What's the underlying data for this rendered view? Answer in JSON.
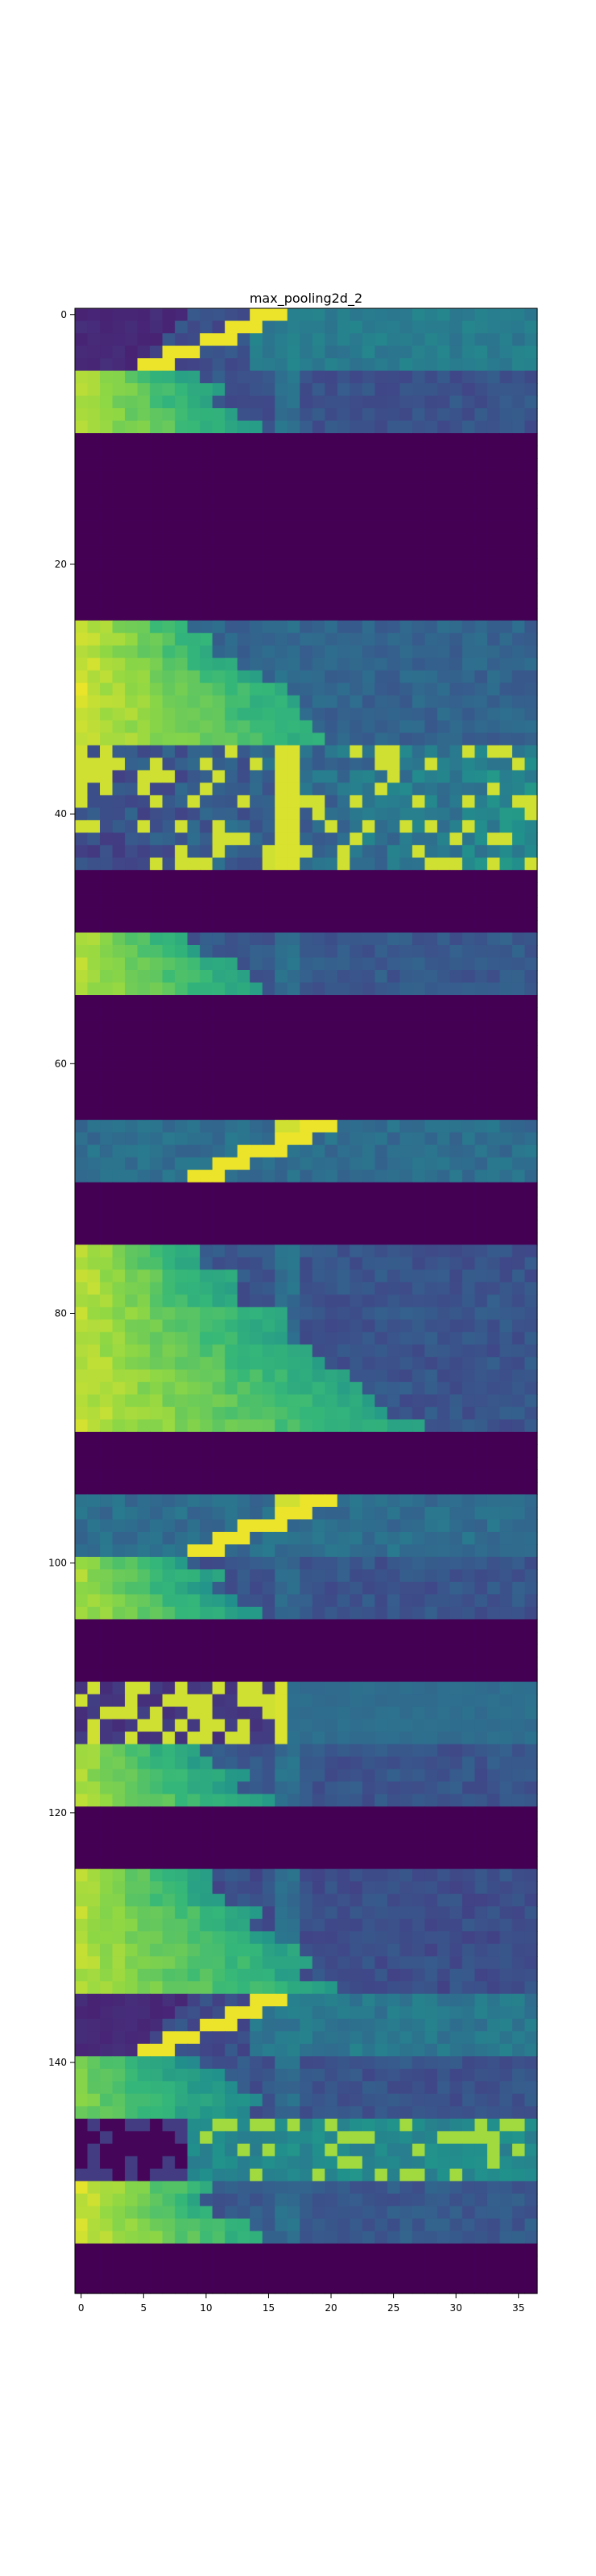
{
  "chart_data": {
    "type": "heatmap",
    "title": "max_pooling2d_2",
    "xlabel": "",
    "ylabel": "",
    "xlim": [
      -0.5,
      36.5
    ],
    "ylim": [
      158.5,
      -0.5
    ],
    "n_cols": 37,
    "n_rows": 159,
    "colormap": "viridis",
    "grid": false,
    "x_ticks": [
      0,
      5,
      10,
      15,
      20,
      25,
      30,
      35
    ],
    "y_ticks": [
      0,
      20,
      40,
      60,
      80,
      100,
      120,
      140
    ],
    "bands": [
      {
        "rows": [
          0,
          4
        ],
        "pattern": "diagonal-dark-left",
        "value_left": 0.12,
        "value_right": 0.52
      },
      {
        "rows": [
          5,
          9
        ],
        "pattern": "bright-left-fade",
        "value_left": 0.92,
        "value_right": 0.32
      },
      {
        "rows": [
          10,
          24
        ],
        "pattern": "empty",
        "value": 0.0
      },
      {
        "rows": [
          25,
          34
        ],
        "pattern": "bright-left-fade",
        "value_left": 0.95,
        "value_right": 0.4
      },
      {
        "rows": [
          35,
          44
        ],
        "pattern": "speckle",
        "value_left": 0.3,
        "value_right": 0.6
      },
      {
        "rows": [
          45,
          49
        ],
        "pattern": "empty",
        "value": 0.0
      },
      {
        "rows": [
          50,
          54
        ],
        "pattern": "bright-left-fade",
        "value_left": 0.92,
        "value_right": 0.35
      },
      {
        "rows": [
          55,
          64
        ],
        "pattern": "empty",
        "value": 0.0
      },
      {
        "rows": [
          65,
          69
        ],
        "pattern": "diagonal-teal",
        "value_left": 0.45,
        "value_right": 0.5
      },
      {
        "rows": [
          70,
          74
        ],
        "pattern": "empty",
        "value": 0.0
      },
      {
        "rows": [
          75,
          89
        ],
        "pattern": "bright-left-fade",
        "value_left": 0.93,
        "value_right": 0.33
      },
      {
        "rows": [
          90,
          94
        ],
        "pattern": "empty",
        "value": 0.0
      },
      {
        "rows": [
          95,
          99
        ],
        "pattern": "diagonal-teal",
        "value_left": 0.45,
        "value_right": 0.42
      },
      {
        "rows": [
          100,
          104
        ],
        "pattern": "bright-left-fade",
        "value_left": 0.9,
        "value_right": 0.33
      },
      {
        "rows": [
          105,
          109
        ],
        "pattern": "empty",
        "value": 0.0
      },
      {
        "rows": [
          110,
          114
        ],
        "pattern": "speckle-left",
        "value_left": 0.25,
        "value_right": 0.45
      },
      {
        "rows": [
          115,
          119
        ],
        "pattern": "bright-left-fade",
        "value_left": 0.9,
        "value_right": 0.33
      },
      {
        "rows": [
          120,
          124
        ],
        "pattern": "empty",
        "value": 0.0
      },
      {
        "rows": [
          125,
          134
        ],
        "pattern": "bright-left-fade",
        "value_left": 0.92,
        "value_right": 0.3
      },
      {
        "rows": [
          135,
          139
        ],
        "pattern": "diagonal-dark-left",
        "value_left": 0.15,
        "value_right": 0.5
      },
      {
        "rows": [
          140,
          144
        ],
        "pattern": "bright-left-fade",
        "value_left": 0.85,
        "value_right": 0.32
      },
      {
        "rows": [
          145,
          149
        ],
        "pattern": "speckle-dark",
        "value_left": 0.08,
        "value_right": 0.6
      },
      {
        "rows": [
          150,
          154
        ],
        "pattern": "bright-left-fade",
        "value_left": 0.95,
        "value_right": 0.35
      },
      {
        "rows": [
          155,
          158
        ],
        "pattern": "empty",
        "value": 0.0
      }
    ]
  }
}
